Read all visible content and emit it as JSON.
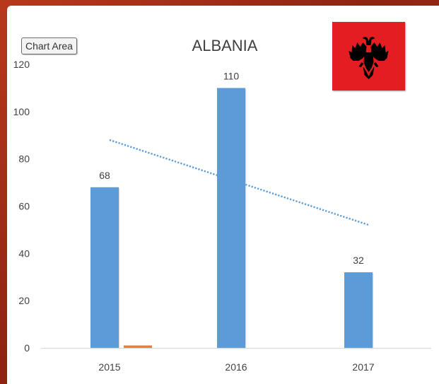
{
  "chart_area_button": "Chart Area",
  "colors": {
    "bar": "#5b9bd5",
    "bar_secondary": "#ed7d31",
    "trendline": "#5b9bd5",
    "axis": "#d9d9d9",
    "text": "#404040",
    "flag_red": "#e41e20",
    "flag_eagle": "#000000"
  },
  "icons": {
    "flag": "albania-flag-icon"
  },
  "chart_data": {
    "type": "bar",
    "title": "ALBANIA",
    "categories": [
      "2015",
      "2016",
      "2017"
    ],
    "series": [
      {
        "values": [
          68,
          110,
          32
        ],
        "data_labels": [
          "68",
          "110",
          "32"
        ]
      },
      {
        "values": [
          0.6,
          0,
          0
        ]
      }
    ],
    "y_ticks": [
      "0",
      "20",
      "40",
      "60",
      "80",
      "100",
      "120"
    ],
    "ylim": [
      0,
      120
    ],
    "xlabel": "",
    "ylabel": "",
    "trendline": {
      "type": "linear",
      "style": "dotted"
    },
    "grid": false,
    "legend": "none"
  }
}
